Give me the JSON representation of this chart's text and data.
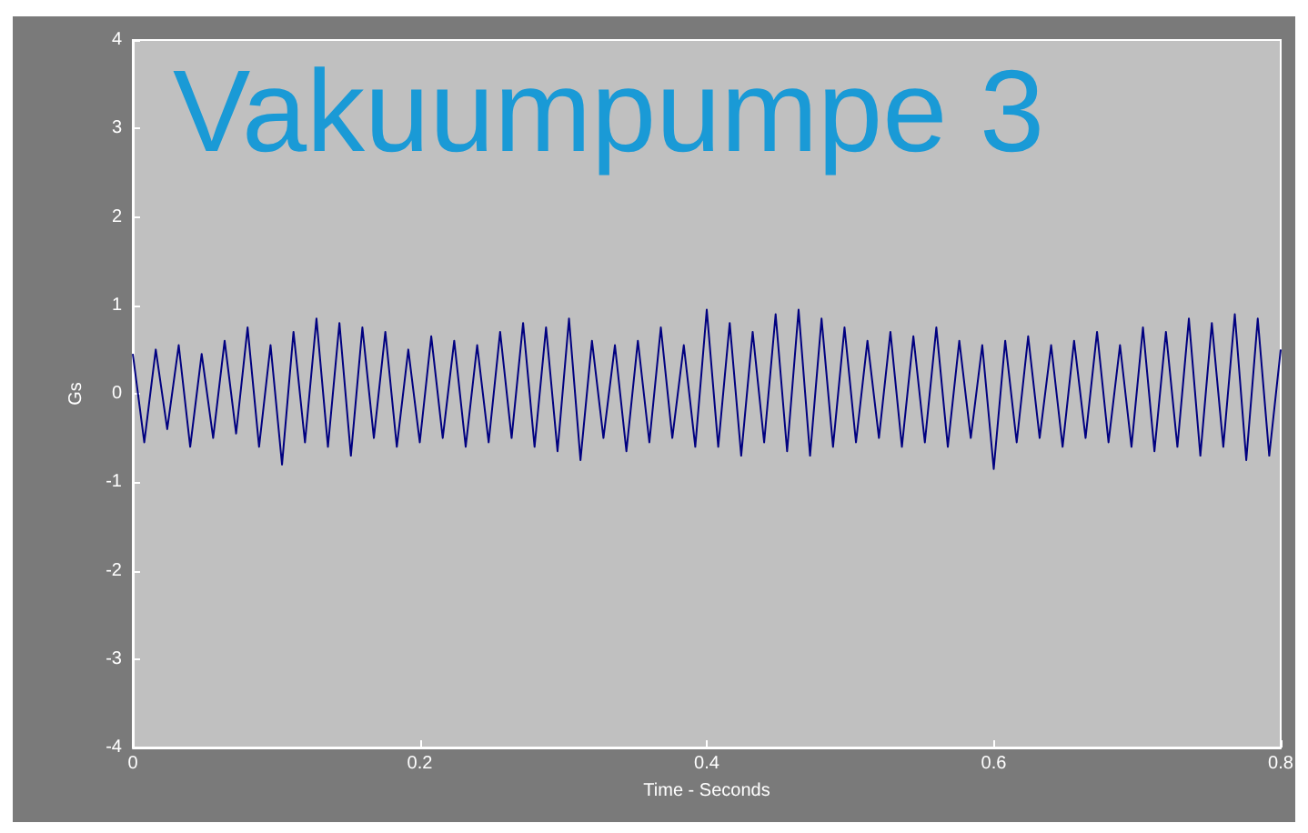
{
  "chart_data": {
    "type": "line",
    "title": "Vakuumpumpe 3",
    "xlabel": "Time - Seconds",
    "ylabel": "Gs",
    "x": [
      0,
      0.008,
      0.016,
      0.024,
      0.032,
      0.04,
      0.048,
      0.056,
      0.064,
      0.072,
      0.08,
      0.088,
      0.096,
      0.104,
      0.112,
      0.12,
      0.128,
      0.136,
      0.144,
      0.152,
      0.16,
      0.168,
      0.176,
      0.184,
      0.192,
      0.2,
      0.208,
      0.216,
      0.224,
      0.232,
      0.24,
      0.248,
      0.256,
      0.264,
      0.272,
      0.28,
      0.288,
      0.296,
      0.304,
      0.312,
      0.32,
      0.328,
      0.336,
      0.344,
      0.352,
      0.36,
      0.368,
      0.376,
      0.384,
      0.392,
      0.4,
      0.408,
      0.416,
      0.424,
      0.432,
      0.44,
      0.448,
      0.456,
      0.464,
      0.472,
      0.48,
      0.488,
      0.496,
      0.504,
      0.512,
      0.52,
      0.528,
      0.536,
      0.544,
      0.552,
      0.56,
      0.568,
      0.576,
      0.584,
      0.592,
      0.6,
      0.608,
      0.616,
      0.624,
      0.632,
      0.64,
      0.648,
      0.656,
      0.664,
      0.672,
      0.68,
      0.688,
      0.696,
      0.704,
      0.712,
      0.72,
      0.728,
      0.736,
      0.744,
      0.752,
      0.76,
      0.768,
      0.776,
      0.784,
      0.792,
      0.8
    ],
    "series": [
      {
        "color": "#000080",
        "values": [
          0.45,
          -0.55,
          0.5,
          -0.4,
          0.55,
          -0.6,
          0.45,
          -0.5,
          0.6,
          -0.45,
          0.75,
          -0.6,
          0.55,
          -0.8,
          0.7,
          -0.55,
          0.85,
          -0.6,
          0.8,
          -0.7,
          0.75,
          -0.5,
          0.7,
          -0.6,
          0.5,
          -0.55,
          0.65,
          -0.5,
          0.6,
          -0.6,
          0.55,
          -0.55,
          0.7,
          -0.5,
          0.8,
          -0.6,
          0.75,
          -0.65,
          0.85,
          -0.75,
          0.6,
          -0.5,
          0.55,
          -0.65,
          0.6,
          -0.55,
          0.75,
          -0.5,
          0.55,
          -0.6,
          0.95,
          -0.6,
          0.8,
          -0.7,
          0.7,
          -0.55,
          0.9,
          -0.65,
          0.95,
          -0.7,
          0.85,
          -0.6,
          0.75,
          -0.55,
          0.6,
          -0.5,
          0.7,
          -0.6,
          0.65,
          -0.55,
          0.75,
          -0.6,
          0.6,
          -0.5,
          0.55,
          -0.85,
          0.6,
          -0.55,
          0.65,
          -0.5,
          0.55,
          -0.6,
          0.6,
          -0.5,
          0.7,
          -0.55,
          0.55,
          -0.6,
          0.75,
          -0.65,
          0.7,
          -0.6,
          0.85,
          -0.7,
          0.8,
          -0.6,
          0.9,
          -0.75,
          0.85,
          -0.7,
          0.5
        ]
      }
    ],
    "xlim": [
      0,
      0.8
    ],
    "xticks": [
      0,
      0.2,
      0.4,
      0.6,
      0.8
    ],
    "ylim": [
      -4,
      4
    ],
    "yticks": [
      -4,
      -3,
      -2,
      -1,
      0,
      1,
      2,
      3,
      4
    ],
    "grid": false
  }
}
